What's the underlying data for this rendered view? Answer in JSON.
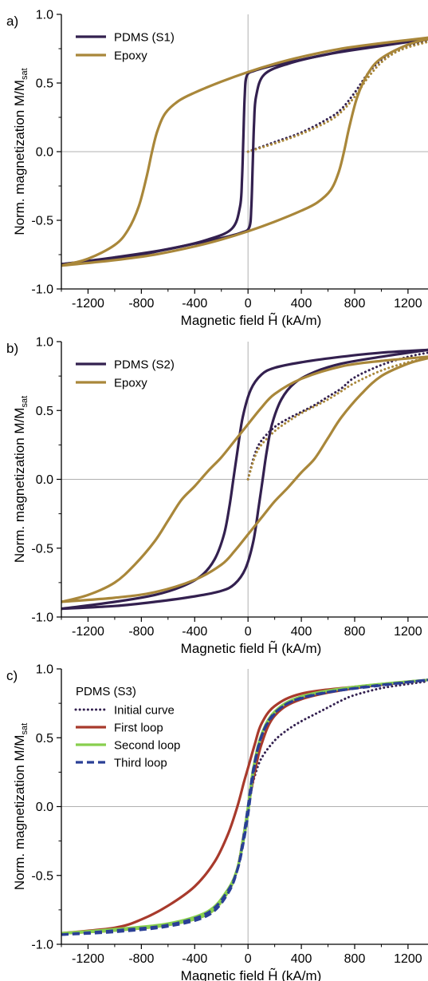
{
  "colors": {
    "pdms": "#33204f",
    "epoxy": "#a9873a",
    "first_loop": "#a83a2c",
    "second_loop": "#88cf4e",
    "third_loop": "#2a3f96",
    "initial_curve": "#33204f",
    "zero_line": "#b0b0b0"
  },
  "chart_data": [
    {
      "type": "line",
      "panel": "a)",
      "xlabel": "Magnetic field H̃ (kA/m)",
      "ylabel": "Norm. magnetization M/M",
      "ylabel_sub": "sat",
      "xlim": [
        -1400,
        1350
      ],
      "ylim": [
        -1.0,
        1.0
      ],
      "xticks": [
        -1200,
        -800,
        -400,
        0,
        400,
        800,
        1200
      ],
      "yticks": [
        -1.0,
        -0.5,
        0.0,
        0.5,
        1.0
      ],
      "ytick_labels": [
        "-1.0",
        "-0.5",
        "0.0",
        "0.5",
        "1.0"
      ],
      "legend": {
        "placement": "top-left",
        "entries": [
          "PDMS (S1)",
          "Epoxy"
        ]
      },
      "series": [
        {
          "name": "PDMS (S1)",
          "color_key": "pdms",
          "style": "solid",
          "x_upper": [
            -1400,
            -1000,
            -600,
            -300,
            -120,
            -60,
            -45,
            -35,
            -25,
            -10,
            50,
            200,
            400,
            600,
            800,
            1000,
            1350
          ],
          "y_upper": [
            -0.82,
            -0.77,
            -0.71,
            -0.64,
            -0.56,
            -0.4,
            -0.2,
            0.1,
            0.4,
            0.55,
            0.59,
            0.63,
            0.67,
            0.71,
            0.75,
            0.78,
            0.82
          ],
          "x_lower": [
            -1400,
            -1000,
            -800,
            -600,
            -400,
            -200,
            -50,
            10,
            25,
            35,
            45,
            60,
            120,
            300,
            600,
            1000,
            1350
          ],
          "y_lower": [
            -0.82,
            -0.78,
            -0.75,
            -0.71,
            -0.67,
            -0.63,
            -0.59,
            -0.55,
            -0.4,
            -0.1,
            0.2,
            0.4,
            0.56,
            0.64,
            0.71,
            0.77,
            0.82
          ]
        },
        {
          "name": "Epoxy",
          "color_key": "epoxy",
          "style": "solid",
          "x_upper": [
            -1400,
            -1200,
            -1000,
            -900,
            -820,
            -760,
            -720,
            -680,
            -620,
            -520,
            -400,
            -200,
            0,
            200,
            400,
            700,
            1000,
            1350
          ],
          "y_upper": [
            -0.83,
            -0.78,
            -0.68,
            -0.57,
            -0.4,
            -0.18,
            0.0,
            0.15,
            0.28,
            0.37,
            0.43,
            0.51,
            0.58,
            0.64,
            0.69,
            0.75,
            0.79,
            0.83
          ],
          "x_lower": [
            -1400,
            -1000,
            -700,
            -400,
            -200,
            0,
            200,
            400,
            520,
            620,
            680,
            720,
            760,
            820,
            900,
            1000,
            1200,
            1350
          ],
          "y_lower": [
            -0.83,
            -0.79,
            -0.75,
            -0.69,
            -0.64,
            -0.58,
            -0.51,
            -0.43,
            -0.37,
            -0.28,
            -0.15,
            0.0,
            0.18,
            0.4,
            0.57,
            0.68,
            0.78,
            0.82
          ]
        },
        {
          "name": "PDMS (S1) initial curve",
          "color_key": "pdms",
          "style": "dotted",
          "x": [
            0,
            200,
            400,
            600,
            700,
            800,
            900,
            1000,
            1100,
            1200,
            1350
          ],
          "y": [
            0.0,
            0.07,
            0.14,
            0.24,
            0.31,
            0.43,
            0.57,
            0.67,
            0.73,
            0.77,
            0.81
          ]
        },
        {
          "name": "Epoxy initial curve",
          "color_key": "epoxy",
          "style": "dotted",
          "x": [
            0,
            200,
            400,
            600,
            700,
            800,
            900,
            1000,
            1100,
            1200,
            1350
          ],
          "y": [
            0.0,
            0.06,
            0.13,
            0.22,
            0.29,
            0.4,
            0.54,
            0.65,
            0.72,
            0.76,
            0.8
          ]
        }
      ]
    },
    {
      "type": "line",
      "panel": "b)",
      "xlabel": "Magnetic field H̃ (kA/m)",
      "ylabel": "Norm. magnetization M/M",
      "ylabel_sub": "sat",
      "xlim": [
        -1400,
        1350
      ],
      "ylim": [
        -1.0,
        1.0
      ],
      "xticks": [
        -1200,
        -800,
        -400,
        0,
        400,
        800,
        1200
      ],
      "yticks": [
        -1.0,
        -0.5,
        0.0,
        0.5,
        1.0
      ],
      "ytick_labels": [
        "-1.0",
        "-0.5",
        "0.0",
        "0.5",
        "1.0"
      ],
      "legend": {
        "placement": "top-left",
        "entries": [
          "PDMS (S2)",
          "Epoxy"
        ]
      },
      "series": [
        {
          "name": "PDMS (S2)",
          "color_key": "pdms",
          "style": "solid",
          "x_upper": [
            -1400,
            -1000,
            -700,
            -500,
            -350,
            -250,
            -180,
            -140,
            -110,
            -80,
            -40,
            20,
            100,
            200,
            400,
            700,
            1000,
            1350
          ],
          "y_upper": [
            -0.94,
            -0.89,
            -0.84,
            -0.78,
            -0.7,
            -0.58,
            -0.4,
            -0.2,
            0.0,
            0.2,
            0.45,
            0.65,
            0.76,
            0.81,
            0.85,
            0.89,
            0.92,
            0.94
          ],
          "x_lower": [
            -1400,
            -1000,
            -700,
            -400,
            -200,
            -100,
            -20,
            40,
            80,
            110,
            140,
            180,
            250,
            350,
            500,
            700,
            1000,
            1350
          ],
          "y_lower": [
            -0.94,
            -0.92,
            -0.89,
            -0.85,
            -0.81,
            -0.76,
            -0.65,
            -0.45,
            -0.2,
            0.0,
            0.2,
            0.4,
            0.58,
            0.7,
            0.78,
            0.84,
            0.89,
            0.94
          ]
        },
        {
          "name": "Epoxy",
          "color_key": "epoxy",
          "style": "solid",
          "x_upper": [
            -1400,
            -1200,
            -1000,
            -850,
            -700,
            -600,
            -500,
            -400,
            -300,
            -200,
            -100,
            0,
            100,
            200,
            400,
            700,
            1000,
            1350
          ],
          "y_upper": [
            -0.89,
            -0.84,
            -0.75,
            -0.62,
            -0.45,
            -0.3,
            -0.15,
            -0.05,
            0.06,
            0.16,
            0.28,
            0.4,
            0.52,
            0.62,
            0.73,
            0.82,
            0.86,
            0.89
          ],
          "x_lower": [
            -1400,
            -1000,
            -700,
            -400,
            -200,
            -100,
            0,
            100,
            200,
            300,
            400,
            500,
            600,
            700,
            850,
            1000,
            1200,
            1350
          ],
          "y_lower": [
            -0.89,
            -0.86,
            -0.82,
            -0.73,
            -0.62,
            -0.52,
            -0.4,
            -0.28,
            -0.16,
            -0.06,
            0.05,
            0.15,
            0.3,
            0.45,
            0.62,
            0.75,
            0.84,
            0.88
          ]
        },
        {
          "name": "PDMS (S2) initial curve",
          "color_key": "pdms",
          "style": "dotted",
          "x": [
            0,
            50,
            100,
            200,
            300,
            400,
            500,
            600,
            700,
            800,
            1000,
            1200,
            1350
          ],
          "y": [
            0.0,
            0.18,
            0.28,
            0.38,
            0.44,
            0.49,
            0.54,
            0.6,
            0.66,
            0.74,
            0.83,
            0.89,
            0.92
          ]
        },
        {
          "name": "Epoxy initial curve",
          "color_key": "epoxy",
          "style": "dotted",
          "x": [
            0,
            50,
            100,
            200,
            300,
            400,
            500,
            600,
            700,
            800,
            1000,
            1200,
            1350
          ],
          "y": [
            0.0,
            0.16,
            0.25,
            0.35,
            0.42,
            0.48,
            0.53,
            0.58,
            0.64,
            0.7,
            0.79,
            0.85,
            0.88
          ]
        }
      ]
    },
    {
      "type": "line",
      "panel": "c)",
      "xlabel": "Magnetic field H̃ (kA/m)",
      "ylabel": "Norm. magnetization M/M",
      "ylabel_sub": "sat",
      "xlim": [
        -1400,
        1350
      ],
      "ylim": [
        -1.0,
        1.0
      ],
      "xticks": [
        -1200,
        -800,
        -400,
        0,
        400,
        800,
        1200
      ],
      "yticks": [
        -1.0,
        -0.5,
        0.0,
        0.5,
        1.0
      ],
      "ytick_labels": [
        "-1.0",
        "-0.5",
        "0.0",
        "0.5",
        "1.0"
      ],
      "legend": {
        "placement": "top-left",
        "title": "PDMS (S3)",
        "entries": [
          "Initial curve",
          "First loop",
          "Second loop",
          "Third loop"
        ]
      },
      "series": [
        {
          "name": "First loop",
          "color_key": "first_loop",
          "style": "solid",
          "x_upper": [
            -1400,
            -1000,
            -800,
            -600,
            -400,
            -250,
            -150,
            -80,
            -30,
            0,
            50,
            100,
            200,
            400,
            800,
            1350
          ],
          "y_upper": [
            -0.92,
            -0.88,
            -0.82,
            -0.72,
            -0.58,
            -0.4,
            -0.2,
            0.0,
            0.18,
            0.28,
            0.45,
            0.6,
            0.73,
            0.82,
            0.87,
            0.92
          ],
          "x_lower": [
            -1400,
            -1000,
            -600,
            -300,
            -150,
            -80,
            -40,
            0,
            40,
            100,
            200,
            400,
            800,
            1350
          ],
          "y_lower": [
            -0.92,
            -0.9,
            -0.86,
            -0.78,
            -0.62,
            -0.45,
            -0.25,
            -0.02,
            0.2,
            0.45,
            0.66,
            0.78,
            0.86,
            0.92
          ]
        },
        {
          "name": "Second loop",
          "color_key": "second_loop",
          "style": "solid",
          "x_upper": [
            -1400,
            -1000,
            -600,
            -300,
            -150,
            -80,
            -40,
            0,
            40,
            100,
            200,
            400,
            800,
            1350
          ],
          "y_upper": [
            -0.92,
            -0.9,
            -0.86,
            -0.78,
            -0.62,
            -0.45,
            -0.25,
            0.0,
            0.28,
            0.52,
            0.69,
            0.8,
            0.87,
            0.92
          ],
          "x_lower": [
            -1400,
            -1000,
            -600,
            -300,
            -150,
            -80,
            -40,
            0,
            40,
            80,
            150,
            300,
            600,
            1000,
            1350
          ],
          "y_lower": [
            -0.92,
            -0.89,
            -0.85,
            -0.76,
            -0.6,
            -0.45,
            -0.28,
            -0.05,
            0.25,
            0.45,
            0.62,
            0.76,
            0.84,
            0.89,
            0.92
          ]
        },
        {
          "name": "Third loop",
          "color_key": "third_loop",
          "style": "dashed",
          "x_upper": [
            -1400,
            -1000,
            -600,
            -300,
            -150,
            -80,
            -40,
            0,
            40,
            100,
            200,
            400,
            800,
            1350
          ],
          "y_upper": [
            -0.93,
            -0.91,
            -0.87,
            -0.79,
            -0.63,
            -0.46,
            -0.26,
            0.0,
            0.27,
            0.51,
            0.68,
            0.79,
            0.86,
            0.92
          ],
          "x_lower": [
            -1400,
            -1000,
            -600,
            -300,
            -150,
            -80,
            -40,
            0,
            40,
            80,
            150,
            300,
            600,
            1000,
            1350
          ],
          "y_lower": [
            -0.93,
            -0.9,
            -0.86,
            -0.77,
            -0.61,
            -0.46,
            -0.29,
            -0.06,
            0.24,
            0.44,
            0.61,
            0.75,
            0.83,
            0.88,
            0.92
          ]
        },
        {
          "name": "Initial curve",
          "color_key": "initial_curve",
          "style": "dotted",
          "x": [
            0,
            20,
            50,
            100,
            200,
            300,
            400,
            500,
            600,
            700,
            800,
            1000,
            1200,
            1350
          ],
          "y": [
            0.0,
            0.1,
            0.22,
            0.35,
            0.48,
            0.56,
            0.62,
            0.67,
            0.72,
            0.77,
            0.81,
            0.86,
            0.89,
            0.91
          ]
        }
      ]
    }
  ]
}
